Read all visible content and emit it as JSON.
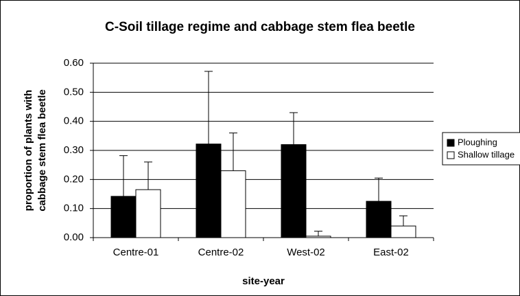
{
  "chart_data": {
    "type": "bar",
    "title": "C-Soil tillage regime and cabbage stem flea beetle",
    "x_label": "site-year",
    "y_label": "proportion of plants with cabbage stem flea beetle",
    "categories": [
      "Centre-01",
      "Centre-02",
      "West-02",
      "East-02"
    ],
    "series": [
      {
        "name": "Ploughing",
        "color": "#000000",
        "values": [
          0.142,
          0.322,
          0.32,
          0.125
        ],
        "errors": [
          0.14,
          0.25,
          0.11,
          0.08
        ]
      },
      {
        "name": "Shallow tillage",
        "color": "#ffffff",
        "values": [
          0.165,
          0.23,
          0.005,
          0.04
        ],
        "errors": [
          0.095,
          0.13,
          0.017,
          0.035
        ]
      }
    ],
    "ylim": [
      0,
      0.6
    ],
    "yticks": [
      {
        "value": 0,
        "label": "0.00"
      },
      {
        "value": 0.1,
        "label": "0.10"
      },
      {
        "value": 0.2,
        "label": "0.20"
      },
      {
        "value": 0.3,
        "label": "0.30"
      },
      {
        "value": 0.4,
        "label": "0.40"
      },
      {
        "value": 0.5,
        "label": "0.50"
      },
      {
        "value": 0.6,
        "label": "0.60"
      }
    ],
    "grid": true,
    "legend": "right"
  }
}
